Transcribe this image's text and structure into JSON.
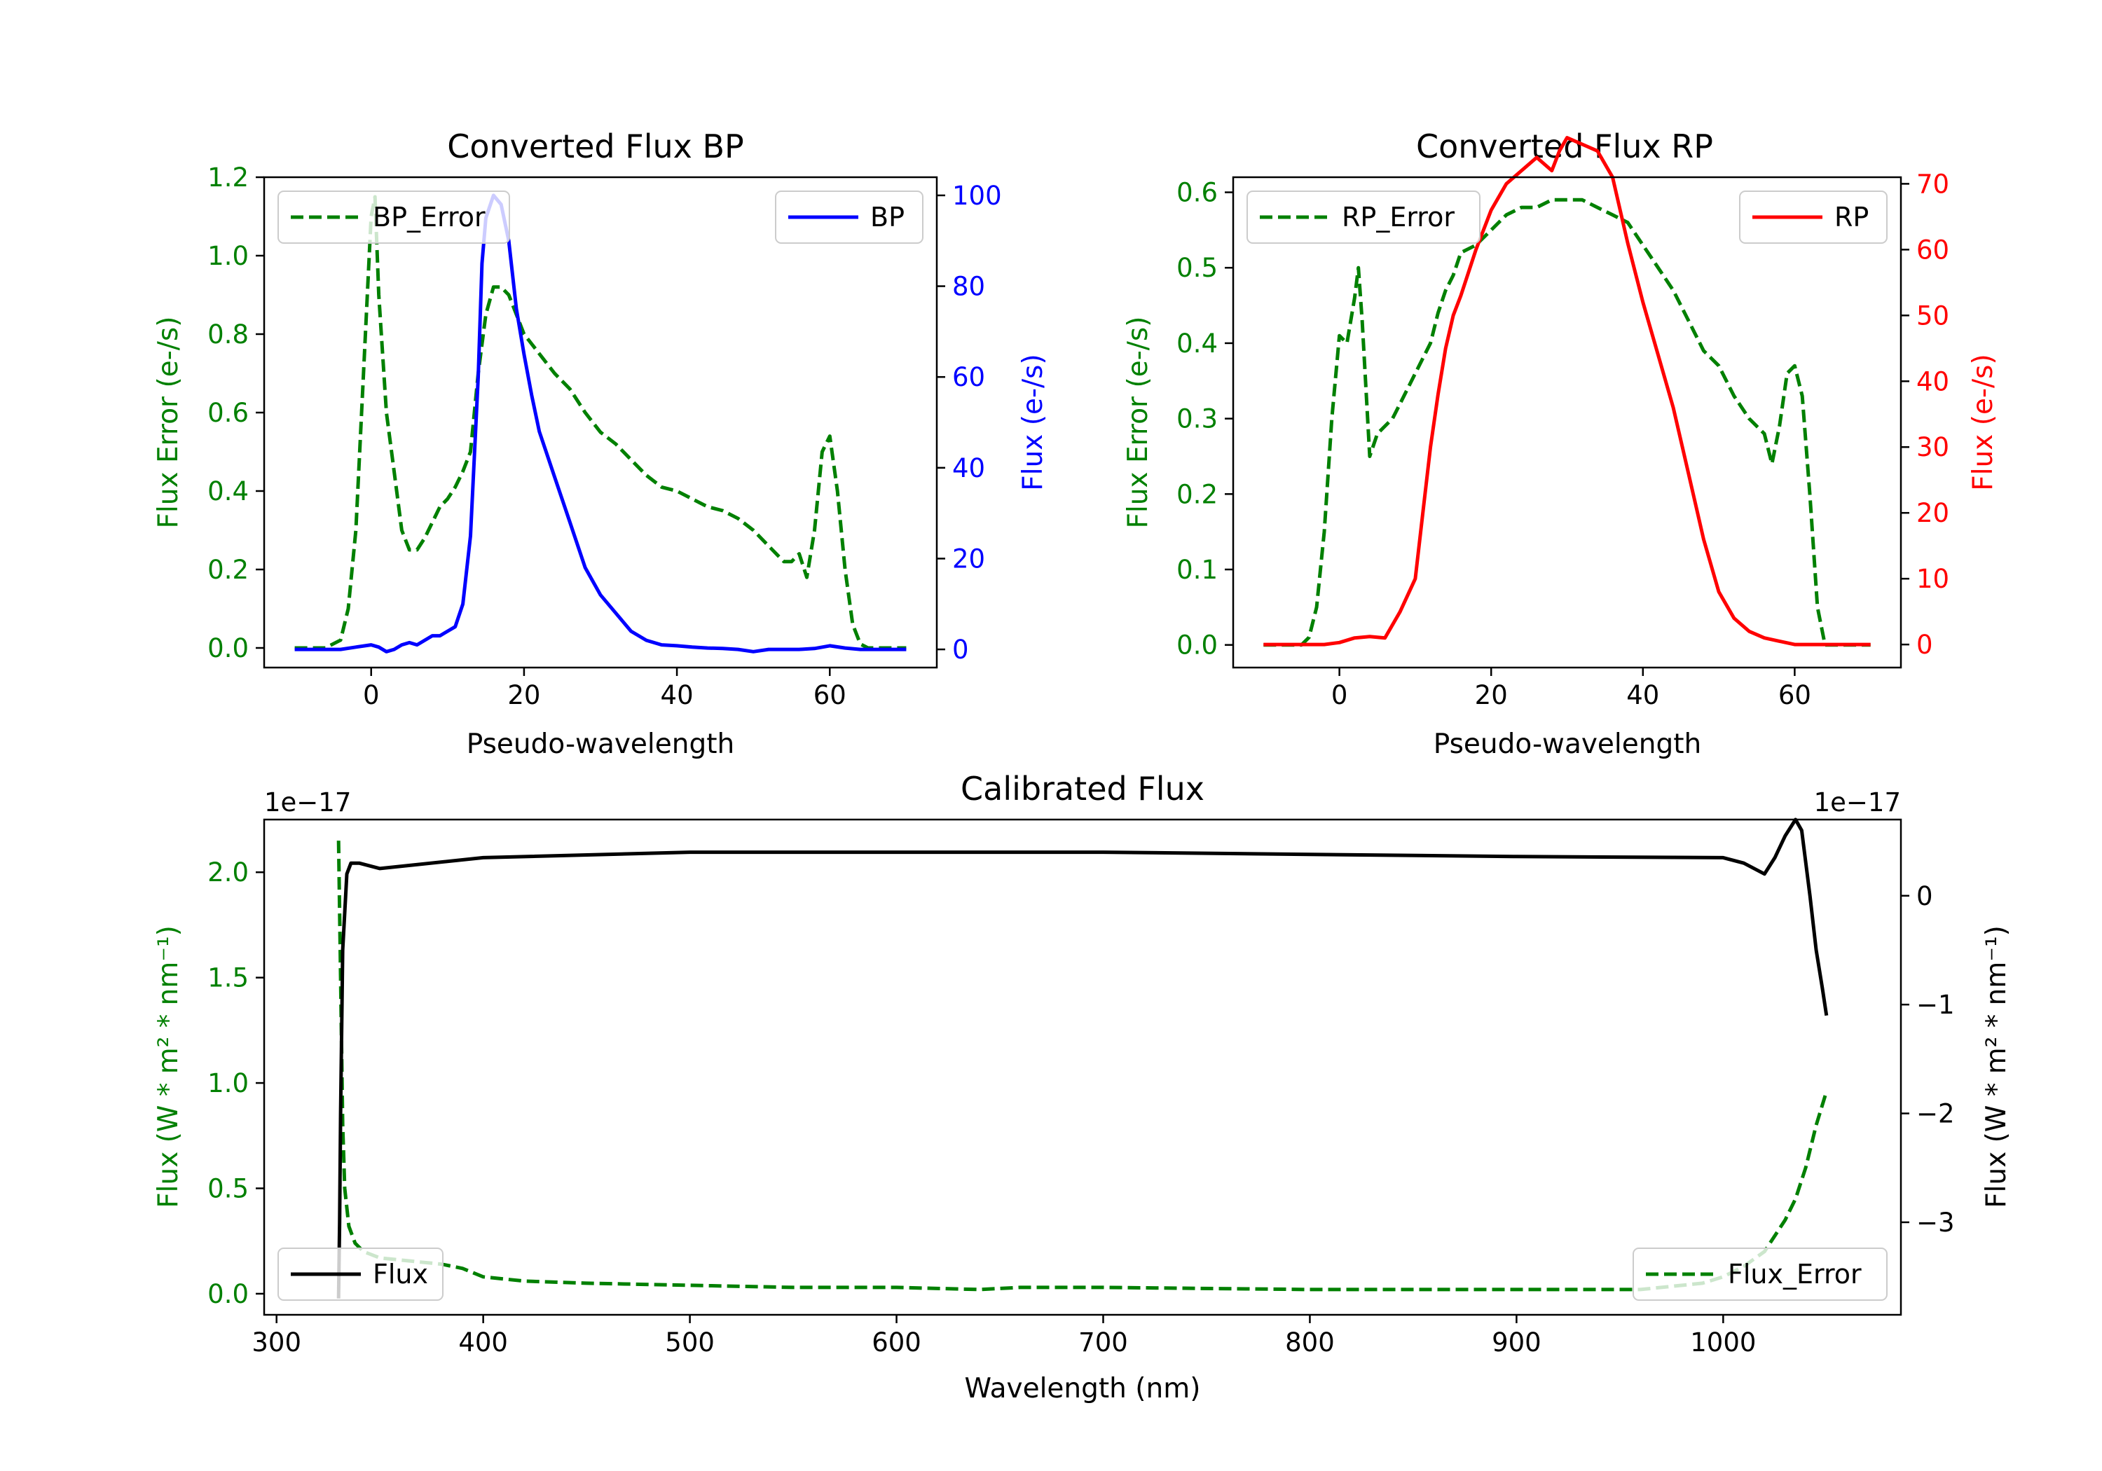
{
  "colors": {
    "green": "#008000",
    "blue": "#0000ff",
    "red": "#ff0000",
    "black": "#000000"
  },
  "chart_data": [
    {
      "id": "bp",
      "type": "line",
      "title": "Converted Flux BP",
      "xlabel": "Pseudo-wavelength",
      "ylabel_left": "Flux Error (e-/s)",
      "ylabel_right": "Flux (e-/s)",
      "xlim": [
        -14,
        74
      ],
      "xticks": [
        0,
        20,
        40,
        60
      ],
      "ylim_left": [
        -0.05,
        1.2
      ],
      "yticks_left": [
        0.0,
        0.2,
        0.4,
        0.6,
        0.8,
        1.0,
        1.2
      ],
      "ylim_right": [
        -4,
        104
      ],
      "yticks_right": [
        0,
        20,
        40,
        60,
        80,
        100
      ],
      "series": [
        {
          "name": "BP_Error",
          "axis": "left",
          "color": "#008000",
          "dash": true,
          "x": [
            -10,
            -6,
            -4,
            -3,
            -2,
            -1,
            0,
            0.5,
            1,
            2,
            3,
            4,
            5,
            6,
            7,
            8,
            9,
            10,
            11,
            12,
            13,
            14,
            15,
            16,
            17,
            18,
            19,
            20,
            22,
            24,
            26,
            28,
            30,
            32,
            34,
            36,
            38,
            40,
            42,
            44,
            46,
            48,
            50,
            52,
            54,
            55,
            56,
            57,
            58,
            59,
            60,
            61,
            62,
            63,
            64,
            65,
            66,
            68,
            70
          ],
          "y": [
            0,
            0,
            0.02,
            0.1,
            0.3,
            0.7,
            1.1,
            1.15,
            0.9,
            0.6,
            0.45,
            0.3,
            0.25,
            0.25,
            0.28,
            0.32,
            0.36,
            0.38,
            0.41,
            0.45,
            0.5,
            0.7,
            0.85,
            0.92,
            0.92,
            0.9,
            0.85,
            0.8,
            0.75,
            0.7,
            0.66,
            0.6,
            0.55,
            0.52,
            0.48,
            0.44,
            0.41,
            0.4,
            0.38,
            0.36,
            0.35,
            0.33,
            0.3,
            0.26,
            0.22,
            0.22,
            0.24,
            0.18,
            0.3,
            0.5,
            0.54,
            0.4,
            0.2,
            0.06,
            0.01,
            0,
            0,
            0,
            0
          ]
        },
        {
          "name": "BP",
          "axis": "right",
          "color": "#0000ff",
          "dash": false,
          "x": [
            -10,
            -6,
            -4,
            -2,
            0,
            1,
            2,
            3,
            4,
            5,
            6,
            7,
            8,
            9,
            10,
            11,
            12,
            13,
            14,
            14.5,
            15,
            16,
            17,
            18,
            19,
            20,
            21,
            22,
            24,
            26,
            28,
            30,
            32,
            33,
            34,
            36,
            38,
            40,
            42,
            44,
            46,
            48,
            50,
            52,
            54,
            56,
            58,
            60,
            62,
            64,
            66,
            68,
            70
          ],
          "y": [
            0,
            0,
            0,
            0.5,
            1,
            0.5,
            -0.5,
            0,
            1,
            1.5,
            1,
            2,
            3,
            3,
            4,
            5,
            10,
            25,
            60,
            85,
            95,
            100,
            98,
            90,
            75,
            65,
            56,
            48,
            38,
            28,
            18,
            12,
            8,
            6,
            4,
            2,
            1,
            0.8,
            0.5,
            0.3,
            0.2,
            0,
            -0.5,
            0,
            0,
            0,
            0.2,
            0.8,
            0.3,
            0,
            0,
            0,
            0
          ]
        }
      ],
      "legend": [
        {
          "label": "BP_Error",
          "position": "upper-left"
        },
        {
          "label": "BP",
          "position": "upper-right"
        }
      ]
    },
    {
      "id": "rp",
      "type": "line",
      "title": "Converted Flux RP",
      "xlabel": "Pseudo-wavelength",
      "ylabel_left": "Flux Error (e-/s)",
      "ylabel_right": "Flux (e-/s)",
      "xlim": [
        -14,
        74
      ],
      "xticks": [
        0,
        20,
        40,
        60
      ],
      "ylim_left": [
        -0.03,
        0.62
      ],
      "yticks_left": [
        0.0,
        0.1,
        0.2,
        0.3,
        0.4,
        0.5,
        0.6
      ],
      "ylim_right": [
        -3.5,
        71
      ],
      "yticks_right": [
        0,
        10,
        20,
        30,
        40,
        50,
        60,
        70
      ],
      "series": [
        {
          "name": "RP_Error",
          "axis": "left",
          "color": "#008000",
          "dash": true,
          "x": [
            -10,
            -5,
            -4,
            -3,
            -2,
            -1,
            0,
            1,
            2,
            2.5,
            3,
            4,
            5,
            6,
            7,
            8,
            10,
            12,
            13,
            14,
            15,
            16,
            18,
            20,
            22,
            24,
            26,
            28,
            30,
            32,
            34,
            36,
            38,
            40,
            42,
            44,
            46,
            48,
            50,
            52,
            54,
            55,
            56,
            57,
            58,
            59,
            60,
            61,
            62,
            63,
            64,
            65,
            66,
            68,
            70
          ],
          "y": [
            0,
            0,
            0.01,
            0.05,
            0.15,
            0.3,
            0.41,
            0.4,
            0.46,
            0.5,
            0.43,
            0.25,
            0.28,
            0.29,
            0.3,
            0.32,
            0.36,
            0.4,
            0.44,
            0.47,
            0.49,
            0.52,
            0.53,
            0.55,
            0.57,
            0.58,
            0.58,
            0.59,
            0.59,
            0.59,
            0.58,
            0.57,
            0.56,
            0.53,
            0.5,
            0.47,
            0.43,
            0.39,
            0.37,
            0.33,
            0.3,
            0.29,
            0.28,
            0.24,
            0.29,
            0.36,
            0.37,
            0.33,
            0.2,
            0.05,
            0,
            0,
            0,
            0,
            0
          ]
        },
        {
          "name": "RP",
          "axis": "right",
          "color": "#ff0000",
          "dash": false,
          "x": [
            -10,
            -4,
            -2,
            0,
            2,
            4,
            6,
            8,
            10,
            11,
            12,
            13,
            14,
            15,
            16,
            18,
            20,
            22,
            24,
            26,
            28,
            29,
            30,
            32,
            34,
            36,
            37,
            38,
            40,
            42,
            44,
            46,
            48,
            50,
            52,
            54,
            56,
            58,
            60,
            62,
            64,
            66,
            68,
            70
          ],
          "y": [
            0,
            0,
            0,
            0.3,
            1,
            1.2,
            1,
            5,
            10,
            20,
            30,
            38,
            45,
            50,
            53,
            60,
            66,
            70,
            72,
            74,
            72,
            75,
            77,
            76,
            75,
            71,
            66,
            61,
            52,
            44,
            36,
            26,
            16,
            8,
            4,
            2,
            1,
            0.5,
            0,
            0,
            0,
            0,
            0,
            0
          ]
        }
      ],
      "legend": [
        {
          "label": "RP_Error",
          "position": "upper-left"
        },
        {
          "label": "RP",
          "position": "upper-right"
        }
      ]
    },
    {
      "id": "cal",
      "type": "line",
      "title": "Calibrated Flux",
      "xlabel": "Wavelength (nm)",
      "ylabel_left": "Flux (W * m² * nm⁻¹)",
      "ylabel_right": "Flux (W * m² * nm⁻¹)",
      "offset_left": "1e−17",
      "offset_right": "1e−17",
      "xlim": [
        294,
        1086
      ],
      "xticks": [
        300,
        400,
        500,
        600,
        700,
        800,
        900,
        1000
      ],
      "ylim_left": [
        -0.1,
        2.25
      ],
      "yticks_left": [
        0.0,
        0.5,
        1.0,
        1.5,
        2.0
      ],
      "ytick_labels_left": [
        "0.0",
        "0.5",
        "1.0",
        "1.5",
        "2.0"
      ],
      "ylim_right": [
        -3.85,
        0.7
      ],
      "yticks_right": [
        0,
        -1,
        -2,
        -3
      ],
      "ytick_labels_right": [
        "0",
        "−1",
        "−2",
        "−3"
      ],
      "series": [
        {
          "name": "Flux_Error",
          "axis": "left",
          "color": "#008000",
          "dash": true,
          "x": [
            330,
            331,
            332,
            333,
            335,
            338,
            342,
            350,
            360,
            370,
            380,
            390,
            400,
            420,
            450,
            500,
            550,
            600,
            640,
            660,
            700,
            800,
            900,
            960,
            990,
            1000,
            1010,
            1020,
            1030,
            1035,
            1040,
            1045,
            1050
          ],
          "y": [
            2.15,
            1.5,
            0.8,
            0.5,
            0.32,
            0.24,
            0.2,
            0.17,
            0.16,
            0.15,
            0.14,
            0.12,
            0.08,
            0.06,
            0.05,
            0.04,
            0.03,
            0.03,
            0.02,
            0.03,
            0.03,
            0.02,
            0.02,
            0.02,
            0.05,
            0.08,
            0.13,
            0.2,
            0.35,
            0.45,
            0.6,
            0.8,
            0.96
          ]
        },
        {
          "name": "Flux",
          "axis": "right",
          "color": "#000000",
          "dash": false,
          "x": [
            330,
            330.5,
            331,
            332,
            334,
            336,
            340,
            350,
            400,
            500,
            600,
            700,
            800,
            900,
            1000,
            1010,
            1020,
            1025,
            1030,
            1035,
            1038,
            1040,
            1042,
            1045,
            1048,
            1050
          ],
          "y": [
            -3.7,
            -3,
            -2,
            -0.5,
            0.2,
            0.3,
            0.3,
            0.25,
            0.35,
            0.4,
            0.4,
            0.4,
            0.38,
            0.36,
            0.35,
            0.3,
            0.2,
            0.35,
            0.55,
            0.7,
            0.6,
            0.3,
            0,
            -0.5,
            -0.85,
            -1.1
          ]
        }
      ],
      "legend": [
        {
          "label": "Flux",
          "position": "lower-left"
        },
        {
          "label": "Flux_Error",
          "position": "lower-right"
        }
      ]
    }
  ]
}
